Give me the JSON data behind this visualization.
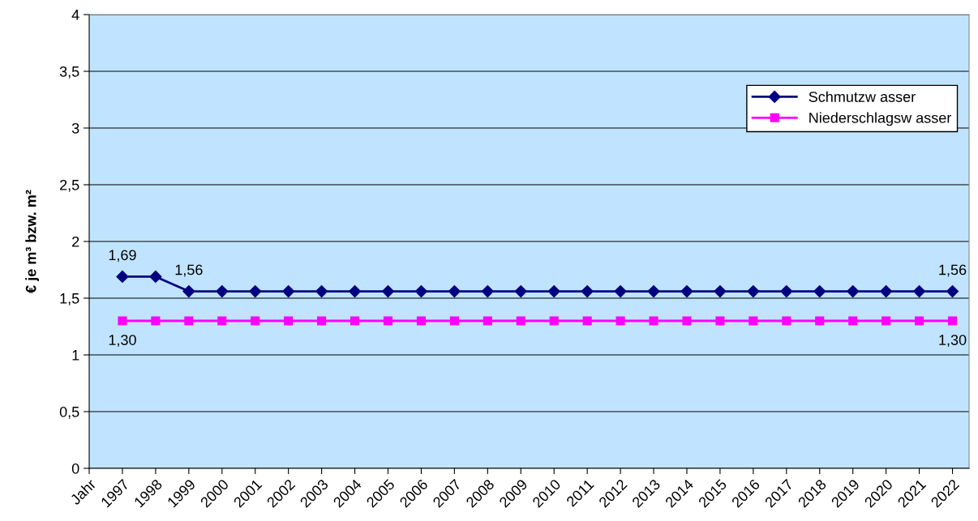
{
  "chart_data": {
    "type": "line",
    "ylabel": "€ je m³ bzw. m²",
    "categories": [
      "Jahr",
      "1997",
      "1998",
      "1999",
      "2000",
      "2001",
      "2002",
      "2003",
      "2004",
      "2005",
      "2006",
      "2007",
      "2008",
      "2009",
      "2010",
      "2011",
      "2012",
      "2013",
      "2014",
      "2015",
      "2016",
      "2017",
      "2018",
      "2019",
      "2020",
      "2021",
      "2022"
    ],
    "series": [
      {
        "name": "Schmutzw asser",
        "color": "#000080",
        "marker": "diamond",
        "values": [
          null,
          1.69,
          1.69,
          1.56,
          1.56,
          1.56,
          1.56,
          1.56,
          1.56,
          1.56,
          1.56,
          1.56,
          1.56,
          1.56,
          1.56,
          1.56,
          1.56,
          1.56,
          1.56,
          1.56,
          1.56,
          1.56,
          1.56,
          1.56,
          1.56,
          1.56,
          1.56
        ],
        "value_labels": [
          null,
          "1,69",
          null,
          "1,56",
          null,
          null,
          null,
          null,
          null,
          null,
          null,
          null,
          null,
          null,
          null,
          null,
          null,
          null,
          null,
          null,
          null,
          null,
          null,
          null,
          null,
          null,
          "1,56"
        ]
      },
      {
        "name": "Niederschlagsw asser",
        "color": "#ff00ff",
        "marker": "square",
        "values": [
          null,
          1.3,
          1.3,
          1.3,
          1.3,
          1.3,
          1.3,
          1.3,
          1.3,
          1.3,
          1.3,
          1.3,
          1.3,
          1.3,
          1.3,
          1.3,
          1.3,
          1.3,
          1.3,
          1.3,
          1.3,
          1.3,
          1.3,
          1.3,
          1.3,
          1.3,
          1.3
        ],
        "value_labels": [
          null,
          "1,30",
          null,
          null,
          null,
          null,
          null,
          null,
          null,
          null,
          null,
          null,
          null,
          null,
          null,
          null,
          null,
          null,
          null,
          null,
          null,
          null,
          null,
          null,
          null,
          null,
          "1,30"
        ]
      }
    ],
    "ylim": [
      0,
      4
    ],
    "yticks": [
      0,
      {
        "value": 0.5,
        "label": "0,5"
      },
      1,
      {
        "value": 1.5,
        "label": "1,5"
      },
      2,
      {
        "value": 2.5,
        "label": "2,5"
      },
      3,
      {
        "value": 3.5,
        "label": "3,5"
      },
      4
    ],
    "grid": "y",
    "legend": "top right",
    "line_style": "solid"
  }
}
